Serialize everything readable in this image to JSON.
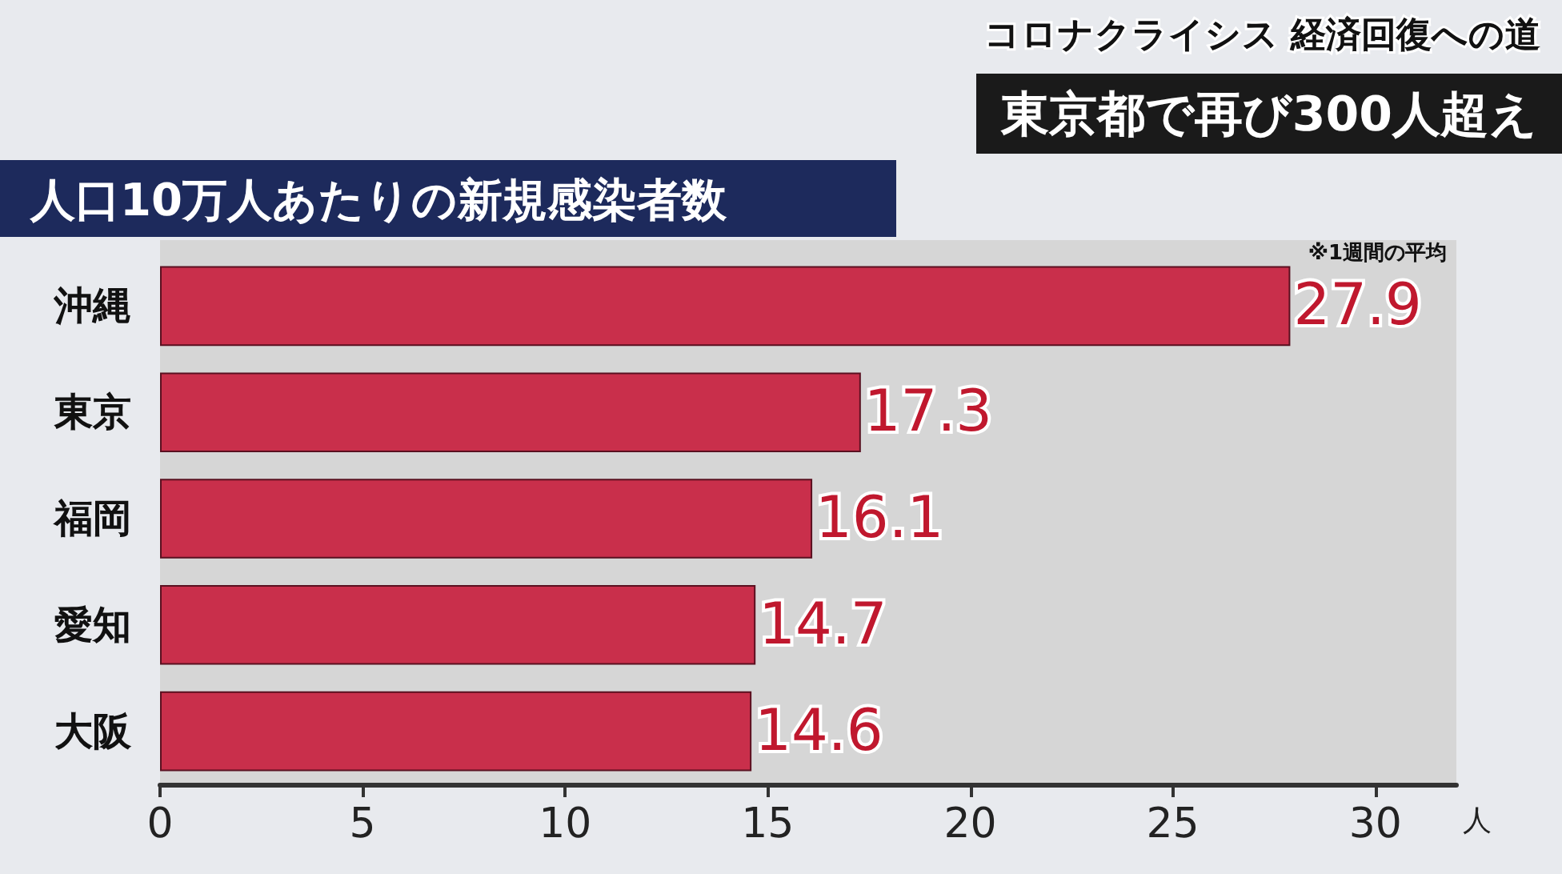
{
  "chart_data": {
    "type": "bar",
    "orientation": "horizontal",
    "title": "人口10万人あたりの新規感染者数",
    "subtitle": "東京都で再び300人超え",
    "xlabel": "人",
    "annotations": [
      "※1週間の平均",
      "コロナクライシス 経済回復への道"
    ],
    "categories": [
      "沖縄",
      "東京",
      "福岡",
      "愛知",
      "大阪"
    ],
    "values": [
      27.9,
      17.3,
      16.1,
      14.7,
      14.6
    ],
    "color": "#c92f4b",
    "xlim": [
      0,
      32
    ],
    "xticks": [
      0,
      5,
      10,
      15,
      20,
      25,
      30
    ],
    "grid": false,
    "data_labels": true
  }
}
